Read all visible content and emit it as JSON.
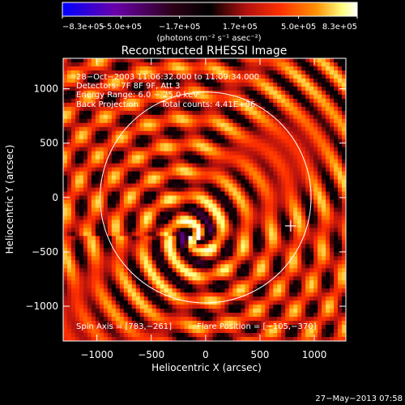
{
  "chart_data": {
    "type": "heatmap",
    "title": "Reconstructed RHESSI Image",
    "xlabel": "Heliocentric X (arcsec)",
    "ylabel": "Heliocentric Y (arcsec)",
    "xlim": [
      -1310,
      1290
    ],
    "ylim": [
      -1320,
      1280
    ],
    "xticks": [
      -1000,
      -500,
      0,
      500,
      1000
    ],
    "yticks": [
      -1000,
      -500,
      0,
      500,
      1000
    ],
    "xtick_labels": [
      "−1000",
      "−500",
      "0",
      "500",
      "1000"
    ],
    "ytick_labels": [
      "−1000",
      "−500",
      "0",
      "500",
      "1000"
    ],
    "colorbar": {
      "min": -830000,
      "max": 830000,
      "ticks": [
        -830000,
        -500000,
        -170000,
        170000,
        500000,
        830000
      ],
      "tick_labels": [
        "−8.3e+05",
        "−5.0e+05",
        "−1.7e+05",
        "1.7e+05",
        "5.0e+05",
        "8.3e+05"
      ],
      "unit_label": "(photons cm⁻² s⁻¹ asec⁻²)",
      "colors": [
        "#0000ff",
        "#6a00a8",
        "#2a0014",
        "#000000",
        "#b01010",
        "#ff3000",
        "#ff9000",
        "#ffff80",
        "#ffffff"
      ]
    },
    "annotations": {
      "time_range": "28−Oct−2003 11:06:32.000 to 11:09:34.000",
      "detectors": "Detectors: 7F 8F 9F, Att 3",
      "energy_range": "Energy Range: 6.0 − 25.0 keV",
      "method": "Back Projection",
      "total_counts": "Total counts: 4.41E+06",
      "spin_axis": "Spin Axis = [783,−261]",
      "flare_position": "Flare Position = [−105,−370]"
    },
    "solar_limb_radius_arcsec": 970,
    "spin_axis": [
      783,
      -261
    ],
    "flare_position": [
      -105,
      -370
    ],
    "timestamp": "27−May−2013 07:58"
  }
}
